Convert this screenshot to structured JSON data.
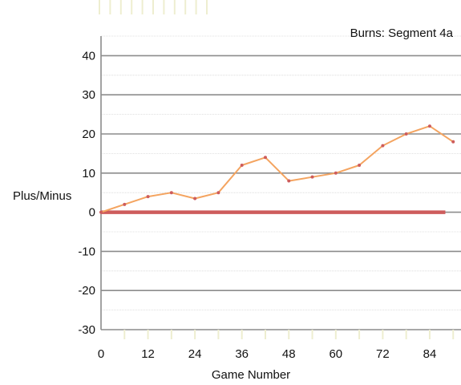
{
  "chart_data": {
    "type": "line",
    "title": "Burns: Segment 4a",
    "xlabel": "Game Number",
    "ylabel": "Plus/Minus",
    "xlim": [
      0,
      92
    ],
    "ylim": [
      -30,
      45
    ],
    "x_ticks": [
      0,
      12,
      24,
      36,
      48,
      60,
      72,
      84
    ],
    "x_minor_step": 6,
    "y_ticks": [
      -30,
      -20,
      -10,
      0,
      10,
      20,
      30,
      40
    ],
    "y_minor_step": 5,
    "grid": true,
    "series": [
      {
        "color": "#f4a460",
        "marker_color": "#cd5c5c",
        "x": [
          0,
          6,
          12,
          18,
          24,
          30,
          36,
          42,
          48,
          54,
          60,
          66,
          72,
          78,
          84,
          90
        ],
        "y": [
          0,
          2,
          4,
          5,
          3.5,
          5,
          12,
          14,
          8,
          9,
          10,
          12,
          17,
          20,
          22,
          18
        ]
      },
      {
        "color": "#cd5c5c",
        "x": [
          0,
          88
        ],
        "y": [
          0,
          0
        ]
      }
    ]
  }
}
